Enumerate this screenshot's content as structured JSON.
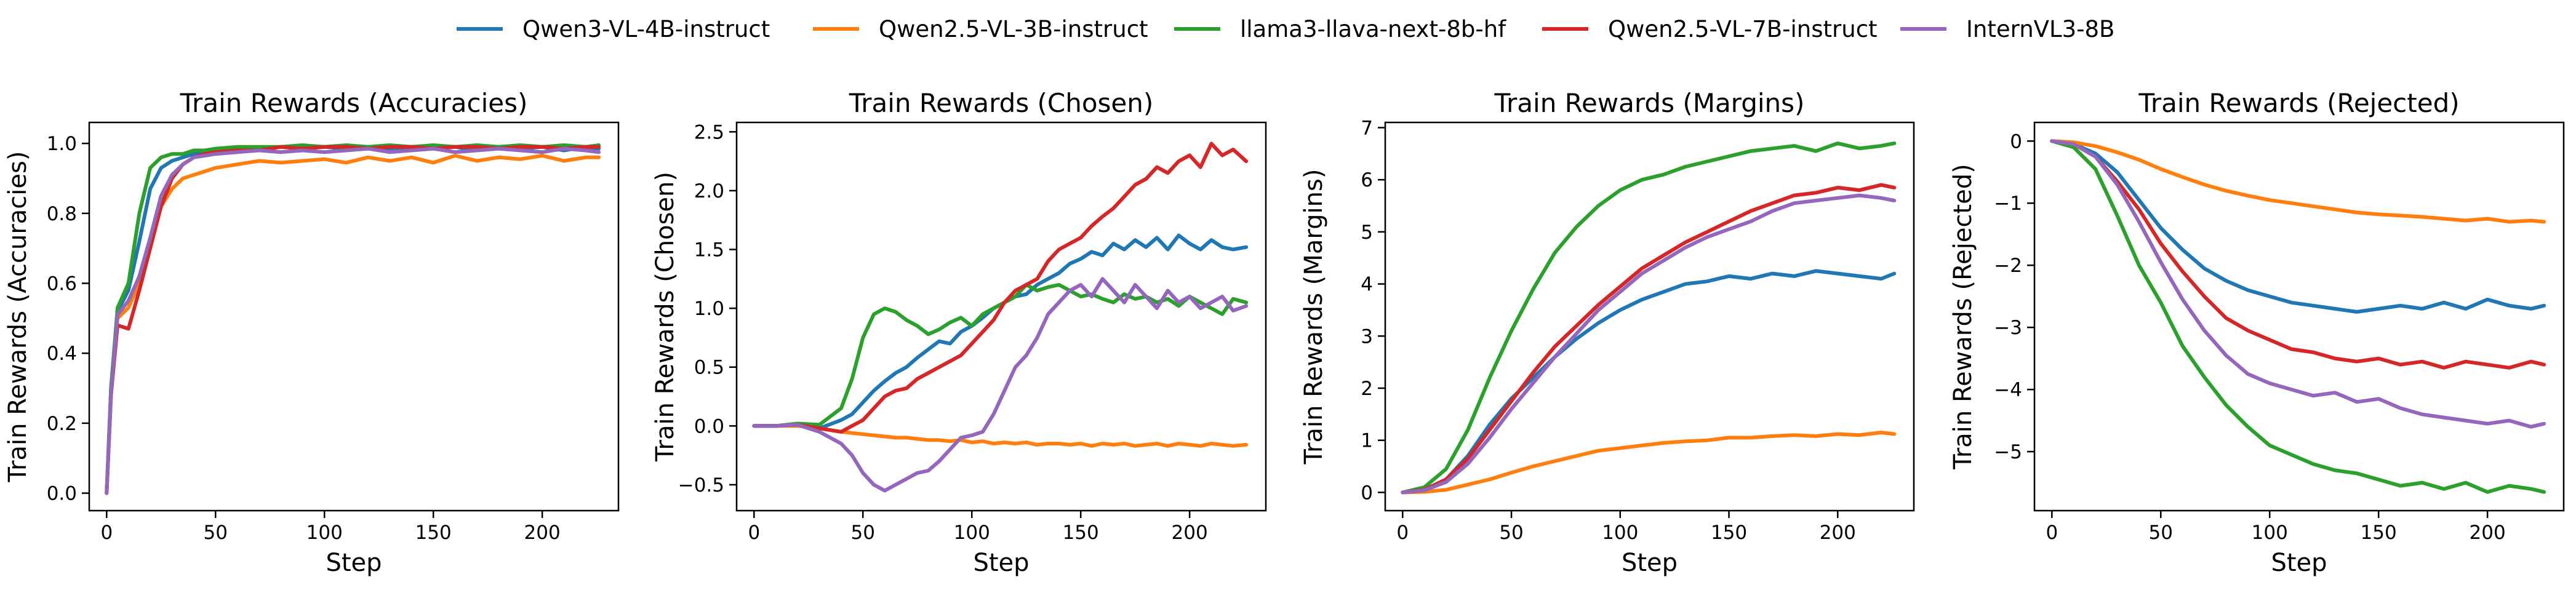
{
  "legend": [
    {
      "name": "Qwen3-VL-4B-instruct",
      "color": "#1f77b4"
    },
    {
      "name": "Qwen2.5-VL-3B-instruct",
      "color": "#ff7f0e"
    },
    {
      "name": "llama3-llava-next-8b-hf",
      "color": "#2ca02c"
    },
    {
      "name": "Qwen2.5-VL-7B-instruct",
      "color": "#d62728"
    },
    {
      "name": "InternVL3-8B",
      "color": "#9467bd"
    }
  ],
  "chart_data": [
    {
      "type": "line",
      "title": "Train Rewards (Accuracies)",
      "xlabel": "Step",
      "ylabel": "Train Rewards (Accuracies)",
      "xlim": [
        -8,
        235
      ],
      "ylim": [
        -0.05,
        1.06
      ],
      "xticks": [
        0,
        50,
        100,
        150,
        200
      ],
      "yticks": [
        0.0,
        0.2,
        0.4,
        0.6,
        0.8,
        1.0
      ],
      "ytick_labels": [
        "0.0",
        "0.2",
        "0.4",
        "0.6",
        "0.8",
        "1.0"
      ],
      "x": [
        0,
        2,
        5,
        10,
        15,
        20,
        25,
        30,
        35,
        40,
        45,
        50,
        60,
        70,
        80,
        90,
        100,
        110,
        120,
        130,
        140,
        150,
        160,
        170,
        180,
        190,
        200,
        210,
        220,
        226
      ],
      "series": [
        {
          "name": "Qwen3-VL-4B-instruct",
          "values": [
            0.0,
            0.3,
            0.52,
            0.58,
            0.72,
            0.87,
            0.93,
            0.95,
            0.96,
            0.97,
            0.97,
            0.98,
            0.98,
            0.985,
            0.99,
            0.985,
            0.99,
            0.985,
            0.99,
            0.98,
            0.99,
            0.985,
            0.99,
            0.98,
            0.99,
            0.985,
            0.99,
            0.98,
            0.99,
            0.985
          ]
        },
        {
          "name": "Qwen2.5-VL-3B-instruct",
          "values": [
            0.0,
            0.28,
            0.5,
            0.53,
            0.6,
            0.72,
            0.82,
            0.87,
            0.9,
            0.91,
            0.92,
            0.93,
            0.94,
            0.95,
            0.945,
            0.95,
            0.955,
            0.945,
            0.96,
            0.95,
            0.96,
            0.945,
            0.965,
            0.95,
            0.96,
            0.955,
            0.965,
            0.95,
            0.96,
            0.96
          ]
        },
        {
          "name": "llama3-llava-next-8b-hf",
          "values": [
            0.0,
            0.3,
            0.53,
            0.6,
            0.8,
            0.93,
            0.96,
            0.97,
            0.97,
            0.98,
            0.98,
            0.985,
            0.99,
            0.99,
            0.99,
            0.995,
            0.99,
            0.995,
            0.99,
            0.995,
            0.99,
            0.995,
            0.99,
            0.995,
            0.99,
            0.995,
            0.99,
            0.995,
            0.99,
            0.995
          ]
        },
        {
          "name": "Qwen2.5-VL-7B-instruct",
          "values": [
            0.0,
            0.28,
            0.48,
            0.47,
            0.58,
            0.7,
            0.82,
            0.9,
            0.94,
            0.96,
            0.97,
            0.975,
            0.98,
            0.98,
            0.99,
            0.985,
            0.99,
            0.99,
            0.985,
            0.99,
            0.99,
            0.985,
            0.99,
            0.99,
            0.985,
            0.99,
            0.99,
            0.985,
            0.99,
            0.99
          ]
        },
        {
          "name": "InternVL3-8B",
          "values": [
            0.0,
            0.28,
            0.51,
            0.55,
            0.62,
            0.73,
            0.85,
            0.91,
            0.94,
            0.96,
            0.965,
            0.97,
            0.975,
            0.98,
            0.975,
            0.98,
            0.975,
            0.98,
            0.985,
            0.975,
            0.98,
            0.985,
            0.975,
            0.98,
            0.985,
            0.98,
            0.975,
            0.985,
            0.98,
            0.975
          ]
        }
      ]
    },
    {
      "type": "line",
      "title": "Train Rewards (Chosen)",
      "xlabel": "Step",
      "ylabel": "Train Rewards (Chosen)",
      "xlim": [
        -8,
        235
      ],
      "ylim": [
        -0.72,
        2.58
      ],
      "xticks": [
        0,
        50,
        100,
        150,
        200
      ],
      "yticks": [
        -0.5,
        0.0,
        0.5,
        1.0,
        1.5,
        2.0,
        2.5
      ],
      "ytick_labels": [
        "−0.5",
        "0.0",
        "0.5",
        "1.0",
        "1.5",
        "2.0",
        "2.5"
      ],
      "x": [
        0,
        10,
        20,
        30,
        40,
        45,
        50,
        55,
        60,
        65,
        70,
        75,
        80,
        85,
        90,
        95,
        100,
        105,
        110,
        115,
        120,
        125,
        130,
        135,
        140,
        145,
        150,
        155,
        160,
        165,
        170,
        175,
        180,
        185,
        190,
        195,
        200,
        205,
        210,
        215,
        220,
        226
      ],
      "series": [
        {
          "name": "Qwen3-VL-4B-instruct",
          "values": [
            0.0,
            0.0,
            0.01,
            -0.02,
            0.05,
            0.1,
            0.2,
            0.3,
            0.38,
            0.45,
            0.5,
            0.58,
            0.65,
            0.72,
            0.7,
            0.8,
            0.85,
            0.92,
            1.0,
            1.05,
            1.1,
            1.12,
            1.2,
            1.25,
            1.3,
            1.38,
            1.42,
            1.48,
            1.45,
            1.55,
            1.5,
            1.58,
            1.52,
            1.6,
            1.5,
            1.62,
            1.55,
            1.5,
            1.58,
            1.52,
            1.5,
            1.52
          ]
        },
        {
          "name": "Qwen2.5-VL-3B-instruct",
          "values": [
            0.0,
            0.0,
            0.0,
            -0.02,
            -0.05,
            -0.06,
            -0.07,
            -0.08,
            -0.09,
            -0.1,
            -0.1,
            -0.11,
            -0.12,
            -0.12,
            -0.13,
            -0.12,
            -0.14,
            -0.13,
            -0.15,
            -0.14,
            -0.15,
            -0.14,
            -0.16,
            -0.15,
            -0.15,
            -0.16,
            -0.15,
            -0.17,
            -0.15,
            -0.16,
            -0.15,
            -0.17,
            -0.16,
            -0.15,
            -0.17,
            -0.15,
            -0.16,
            -0.17,
            -0.15,
            -0.16,
            -0.17,
            -0.16
          ]
        },
        {
          "name": "llama3-llava-next-8b-hf",
          "values": [
            0.0,
            0.0,
            0.02,
            0.01,
            0.15,
            0.4,
            0.75,
            0.95,
            1.0,
            0.97,
            0.9,
            0.85,
            0.78,
            0.82,
            0.88,
            0.92,
            0.85,
            0.95,
            1.0,
            1.05,
            1.1,
            1.2,
            1.15,
            1.18,
            1.2,
            1.15,
            1.1,
            1.12,
            1.08,
            1.05,
            1.12,
            1.08,
            1.1,
            1.05,
            1.08,
            1.02,
            1.1,
            1.05,
            1.0,
            0.95,
            1.08,
            1.05
          ]
        },
        {
          "name": "Qwen2.5-VL-7B-instruct",
          "values": [
            0.0,
            0.0,
            0.01,
            -0.02,
            -0.05,
            0.0,
            0.05,
            0.15,
            0.25,
            0.3,
            0.32,
            0.4,
            0.45,
            0.5,
            0.55,
            0.6,
            0.7,
            0.8,
            0.9,
            1.05,
            1.15,
            1.2,
            1.25,
            1.4,
            1.5,
            1.55,
            1.6,
            1.7,
            1.78,
            1.85,
            1.95,
            2.05,
            2.1,
            2.2,
            2.15,
            2.25,
            2.3,
            2.2,
            2.4,
            2.3,
            2.35,
            2.25
          ]
        },
        {
          "name": "InternVL3-8B",
          "values": [
            0.0,
            0.0,
            0.01,
            -0.05,
            -0.15,
            -0.25,
            -0.4,
            -0.5,
            -0.55,
            -0.5,
            -0.45,
            -0.4,
            -0.38,
            -0.3,
            -0.2,
            -0.1,
            -0.08,
            -0.05,
            0.1,
            0.3,
            0.5,
            0.6,
            0.75,
            0.95,
            1.05,
            1.15,
            1.2,
            1.1,
            1.25,
            1.15,
            1.05,
            1.2,
            1.1,
            1.0,
            1.15,
            1.05,
            1.1,
            1.0,
            1.05,
            1.1,
            0.98,
            1.02
          ]
        }
      ]
    },
    {
      "type": "line",
      "title": "Train Rewards (Margins)",
      "xlabel": "Step",
      "ylabel": "Train Rewards (Margins)",
      "xlim": [
        -8,
        235
      ],
      "ylim": [
        -0.35,
        7.1
      ],
      "xticks": [
        0,
        50,
        100,
        150,
        200
      ],
      "yticks": [
        0,
        1,
        2,
        3,
        4,
        5,
        6,
        7
      ],
      "ytick_labels": [
        "0",
        "1",
        "2",
        "3",
        "4",
        "5",
        "6",
        "7"
      ],
      "x": [
        0,
        10,
        20,
        30,
        40,
        50,
        60,
        70,
        80,
        90,
        100,
        110,
        120,
        130,
        140,
        150,
        160,
        170,
        180,
        190,
        200,
        210,
        220,
        226
      ],
      "series": [
        {
          "name": "Qwen3-VL-4B-instruct",
          "values": [
            0.0,
            0.05,
            0.25,
            0.7,
            1.3,
            1.8,
            2.2,
            2.6,
            2.95,
            3.25,
            3.5,
            3.7,
            3.85,
            4.0,
            4.05,
            4.15,
            4.1,
            4.2,
            4.15,
            4.25,
            4.2,
            4.15,
            4.1,
            4.2
          ]
        },
        {
          "name": "Qwen2.5-VL-3B-instruct",
          "values": [
            0.0,
            0.01,
            0.05,
            0.15,
            0.25,
            0.38,
            0.5,
            0.6,
            0.7,
            0.8,
            0.85,
            0.9,
            0.95,
            0.98,
            1.0,
            1.05,
            1.05,
            1.08,
            1.1,
            1.08,
            1.12,
            1.1,
            1.15,
            1.12
          ]
        },
        {
          "name": "llama3-llava-next-8b-hf",
          "values": [
            0.0,
            0.1,
            0.45,
            1.2,
            2.2,
            3.1,
            3.9,
            4.6,
            5.1,
            5.5,
            5.8,
            6.0,
            6.1,
            6.25,
            6.35,
            6.45,
            6.55,
            6.6,
            6.65,
            6.55,
            6.7,
            6.6,
            6.65,
            6.7
          ]
        },
        {
          "name": "Qwen2.5-VL-7B-instruct",
          "values": [
            0.0,
            0.05,
            0.25,
            0.65,
            1.2,
            1.75,
            2.3,
            2.8,
            3.2,
            3.6,
            3.95,
            4.3,
            4.55,
            4.8,
            5.0,
            5.2,
            5.4,
            5.55,
            5.7,
            5.75,
            5.85,
            5.8,
            5.9,
            5.85
          ]
        },
        {
          "name": "InternVL3-8B",
          "values": [
            0.0,
            0.04,
            0.2,
            0.55,
            1.05,
            1.6,
            2.1,
            2.6,
            3.05,
            3.5,
            3.85,
            4.2,
            4.45,
            4.7,
            4.9,
            5.05,
            5.2,
            5.4,
            5.55,
            5.6,
            5.65,
            5.7,
            5.65,
            5.6
          ]
        }
      ]
    },
    {
      "type": "line",
      "title": "Train Rewards (Rejected)",
      "xlabel": "Step",
      "ylabel": "Train Rewards (Rejected)",
      "xlim": [
        -8,
        235
      ],
      "ylim": [
        -5.95,
        0.3
      ],
      "xticks": [
        0,
        50,
        100,
        150,
        200
      ],
      "yticks": [
        0,
        -1,
        -2,
        -3,
        -4,
        -5
      ],
      "ytick_labels": [
        "0",
        "−1",
        "−2",
        "−3",
        "−4",
        "−5"
      ],
      "x": [
        0,
        10,
        20,
        30,
        40,
        50,
        60,
        70,
        80,
        90,
        100,
        110,
        120,
        130,
        140,
        150,
        160,
        170,
        180,
        190,
        200,
        210,
        220,
        226
      ],
      "series": [
        {
          "name": "Qwen3-VL-4B-instruct",
          "values": [
            0.0,
            -0.05,
            -0.2,
            -0.5,
            -0.95,
            -1.4,
            -1.75,
            -2.05,
            -2.25,
            -2.4,
            -2.5,
            -2.6,
            -2.65,
            -2.7,
            -2.75,
            -2.7,
            -2.65,
            -2.7,
            -2.6,
            -2.7,
            -2.55,
            -2.65,
            -2.7,
            -2.65
          ]
        },
        {
          "name": "Qwen2.5-VL-3B-instruct",
          "values": [
            0.0,
            -0.02,
            -0.08,
            -0.18,
            -0.3,
            -0.45,
            -0.58,
            -0.7,
            -0.8,
            -0.88,
            -0.95,
            -1.0,
            -1.05,
            -1.1,
            -1.15,
            -1.18,
            -1.2,
            -1.22,
            -1.25,
            -1.28,
            -1.25,
            -1.3,
            -1.28,
            -1.3
          ]
        },
        {
          "name": "llama3-llava-next-8b-hf",
          "values": [
            0.0,
            -0.1,
            -0.45,
            -1.2,
            -2.0,
            -2.6,
            -3.3,
            -3.8,
            -4.25,
            -4.6,
            -4.9,
            -5.05,
            -5.2,
            -5.3,
            -5.35,
            -5.45,
            -5.55,
            -5.5,
            -5.6,
            -5.5,
            -5.65,
            -5.55,
            -5.6,
            -5.65
          ]
        },
        {
          "name": "Qwen2.5-VL-7B-instruct",
          "values": [
            0.0,
            -0.05,
            -0.25,
            -0.65,
            -1.1,
            -1.65,
            -2.1,
            -2.5,
            -2.85,
            -3.05,
            -3.2,
            -3.35,
            -3.4,
            -3.5,
            -3.55,
            -3.5,
            -3.6,
            -3.55,
            -3.65,
            -3.55,
            -3.6,
            -3.65,
            -3.55,
            -3.6
          ]
        },
        {
          "name": "InternVL3-8B",
          "values": [
            0.0,
            -0.05,
            -0.25,
            -0.7,
            -1.3,
            -1.95,
            -2.55,
            -3.05,
            -3.45,
            -3.75,
            -3.9,
            -4.0,
            -4.1,
            -4.05,
            -4.2,
            -4.15,
            -4.3,
            -4.4,
            -4.45,
            -4.5,
            -4.55,
            -4.5,
            -4.6,
            -4.55
          ]
        }
      ]
    }
  ]
}
